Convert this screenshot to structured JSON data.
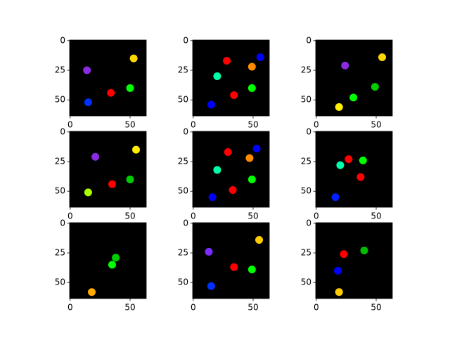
{
  "chart_data": [
    {
      "type": "image",
      "background": "#000000",
      "xlim": [
        -0.5,
        63.5
      ],
      "ylim": [
        63.5,
        -0.5
      ],
      "xticks": [
        0,
        50
      ],
      "yticks": [
        0,
        25,
        50
      ],
      "x": [
        14,
        53,
        34,
        50,
        15
      ],
      "values": [
        25,
        15,
        44,
        40,
        52
      ],
      "colors": [
        "#8a2be2",
        "#ffd700",
        "#ff0000",
        "#00ff00",
        "#0030ff"
      ]
    },
    {
      "type": "image",
      "background": "#000000",
      "xlim": [
        -0.5,
        63.5
      ],
      "ylim": [
        63.5,
        -0.5
      ],
      "xticks": [
        0,
        50
      ],
      "yticks": [
        0,
        25,
        50
      ],
      "x": [
        28,
        49,
        56,
        20,
        49,
        34,
        15
      ],
      "values": [
        17,
        22,
        14,
        30,
        40,
        46,
        54
      ],
      "colors": [
        "#ff0000",
        "#ff8c00",
        "#0000ff",
        "#00ffaa",
        "#00ff00",
        "#ff0000",
        "#0000ff"
      ]
    },
    {
      "type": "image",
      "background": "#000000",
      "xlim": [
        -0.5,
        63.5
      ],
      "ylim": [
        63.5,
        -0.5
      ],
      "xticks": [
        0,
        50
      ],
      "yticks": [
        0,
        25,
        50
      ],
      "x": [
        55,
        24,
        31,
        49,
        19
      ],
      "values": [
        14,
        21,
        48,
        39,
        56
      ],
      "colors": [
        "#ffd700",
        "#8a2be2",
        "#00ff00",
        "#00cc00",
        "#ffee00"
      ]
    },
    {
      "type": "image",
      "background": "#000000",
      "xlim": [
        -0.5,
        63.5
      ],
      "ylim": [
        63.5,
        -0.5
      ],
      "xticks": [
        0,
        50
      ],
      "yticks": [
        0,
        25,
        50
      ],
      "x": [
        21,
        55,
        35,
        50,
        15
      ],
      "values": [
        21,
        15,
        44,
        40,
        51
      ],
      "colors": [
        "#8a2be2",
        "#ffee00",
        "#ff0000",
        "#00cc00",
        "#aaff00"
      ]
    },
    {
      "type": "image",
      "background": "#000000",
      "xlim": [
        -0.5,
        63.5
      ],
      "ylim": [
        63.5,
        -0.5
      ],
      "xticks": [
        0,
        50
      ],
      "yticks": [
        0,
        25,
        50
      ],
      "x": [
        29,
        53,
        47,
        20,
        49,
        33,
        16
      ],
      "values": [
        17,
        14,
        22,
        32,
        40,
        49,
        55
      ],
      "colors": [
        "#ff0000",
        "#0000ff",
        "#ff8c00",
        "#00ffaa",
        "#00ff00",
        "#ff0000",
        "#0000ff"
      ]
    },
    {
      "type": "image",
      "background": "#000000",
      "xlim": [
        -0.5,
        63.5
      ],
      "ylim": [
        63.5,
        -0.5
      ],
      "xticks": [
        0,
        50
      ],
      "yticks": [
        0,
        25,
        50
      ],
      "x": [
        27,
        39,
        20,
        37,
        16
      ],
      "values": [
        23,
        24,
        28,
        38,
        55
      ],
      "colors": [
        "#ff0000",
        "#00ff00",
        "#00ffaa",
        "#ff0000",
        "#0020ff"
      ]
    },
    {
      "type": "image",
      "background": "#000000",
      "xlim": [
        -0.5,
        63.5
      ],
      "ylim": [
        63.5,
        -0.5
      ],
      "xticks": [
        0,
        50
      ],
      "yticks": [
        0,
        25,
        50
      ],
      "x": [
        38,
        35,
        18
      ],
      "values": [
        29,
        35,
        58
      ],
      "colors": [
        "#00cc00",
        "#00ff00",
        "#ffaa00"
      ]
    },
    {
      "type": "image",
      "background": "#000000",
      "xlim": [
        -0.5,
        63.5
      ],
      "ylim": [
        63.5,
        -0.5
      ],
      "xticks": [
        0,
        50
      ],
      "yticks": [
        0,
        25,
        50
      ],
      "x": [
        13,
        55,
        34,
        49,
        15
      ],
      "values": [
        24,
        14,
        37,
        39,
        53
      ],
      "colors": [
        "#7a2bff",
        "#ffcc00",
        "#ff0000",
        "#00ff00",
        "#0030ff"
      ]
    },
    {
      "type": "image",
      "background": "#000000",
      "xlim": [
        -0.5,
        63.5
      ],
      "ylim": [
        63.5,
        -0.5
      ],
      "xticks": [
        0,
        50
      ],
      "yticks": [
        0,
        25,
        50
      ],
      "x": [
        23,
        40,
        18,
        19
      ],
      "values": [
        26,
        23,
        40,
        58
      ],
      "colors": [
        "#ff0000",
        "#00bb00",
        "#0000ff",
        "#ffcc00"
      ]
    }
  ]
}
